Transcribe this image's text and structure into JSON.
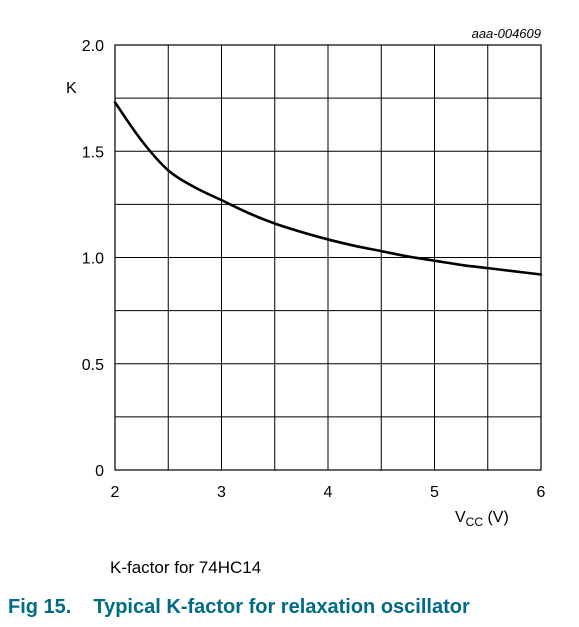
{
  "figure": {
    "ref_code": "aaa-004609",
    "caption": "K-factor for 74HC14",
    "fig_number": "Fig 15.",
    "fig_title": "Typical K-factor for relaxation oscillator"
  },
  "chart_data": {
    "type": "line",
    "title": "",
    "ylabel": "K",
    "xlabel_main": "V",
    "xlabel_sub": "CC",
    "xlabel_unit": " (V)",
    "xlim": [
      2,
      6
    ],
    "ylim": [
      0,
      2.0
    ],
    "xticks": [
      "2",
      "3",
      "4",
      "5",
      "6"
    ],
    "yticks": [
      "0",
      "0.5",
      "1.0",
      "1.5",
      "2.0"
    ],
    "grid": true,
    "series": [
      {
        "x": [
          2.0,
          2.25,
          2.5,
          2.75,
          3.0,
          3.25,
          3.5,
          3.75,
          4.0,
          4.25,
          4.5,
          4.75,
          5.0,
          5.25,
          5.5,
          5.75,
          6.0
        ],
        "y": [
          1.73,
          1.55,
          1.41,
          1.33,
          1.27,
          1.21,
          1.16,
          1.12,
          1.085,
          1.055,
          1.03,
          1.005,
          0.985,
          0.965,
          0.95,
          0.935,
          0.92
        ],
        "color": "#000000"
      }
    ]
  }
}
